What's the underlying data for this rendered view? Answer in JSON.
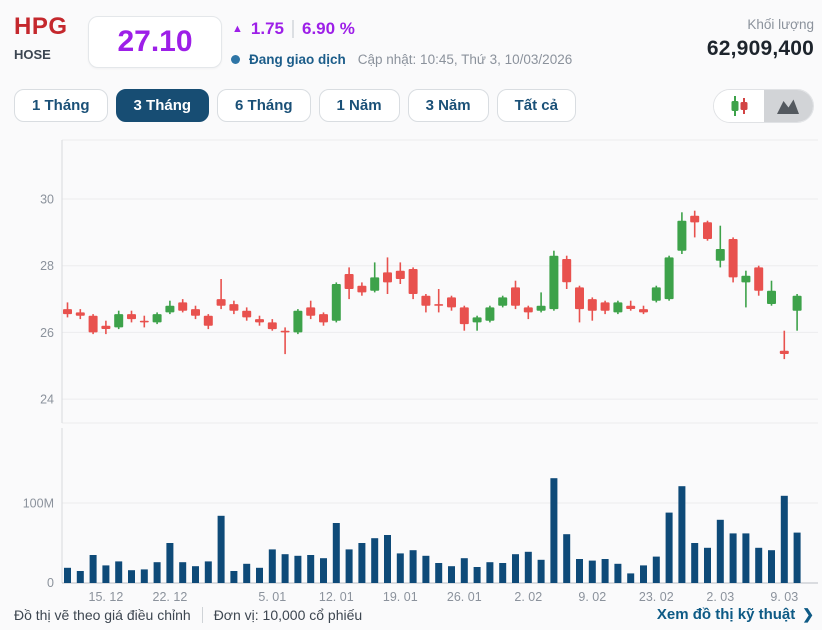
{
  "header": {
    "ticker": "HPG",
    "exchange": "HOSE",
    "price": "27.10",
    "change_arrow": "▲",
    "change_value": "1.75",
    "change_percent": "6.90 %",
    "status_label": "Đang giao dịch",
    "updated_label": "Cập nhật: 10:45, Thứ 3, 10/03/2026",
    "volume_label": "Khối lượng",
    "volume_value": "62,909,400"
  },
  "toolbar": {
    "tabs": [
      "1 Tháng",
      "3 Tháng",
      "6 Tháng",
      "1 Năm",
      "3 Năm",
      "Tất cả"
    ],
    "active_tab": "3 Tháng",
    "view_toggle": {
      "candlestick_selected": true,
      "options": [
        "candlestick",
        "area"
      ]
    }
  },
  "colors": {
    "ceiling_purple": "#9d1fe8",
    "ticker_red": "#c4282d",
    "navy": "#174d73",
    "status_blue": "#1c5d8a",
    "link_blue": "#0e5a85"
  },
  "chart_data": {
    "type": "candlestick+volume",
    "title": "HPG 3-month price chart",
    "price_axis_ticks": [
      30,
      28,
      26,
      24
    ],
    "price_range_shown": [
      24,
      30
    ],
    "volume_axis_ticks": [
      "100M",
      "0"
    ],
    "grid": true,
    "up_color": "#3da24a",
    "down_color": "#e8514e",
    "volume_color": "#0e4a78",
    "x_ticks": [
      {
        "index": 3,
        "label": "15. 12"
      },
      {
        "index": 8,
        "label": "22. 12"
      },
      {
        "index": 16,
        "label": "5. 01"
      },
      {
        "index": 21,
        "label": "12. 01"
      },
      {
        "index": 26,
        "label": "19. 01"
      },
      {
        "index": 31,
        "label": "26. 01"
      },
      {
        "index": 36,
        "label": "2. 02"
      },
      {
        "index": 41,
        "label": "9. 02"
      },
      {
        "index": 46,
        "label": "23. 02"
      },
      {
        "index": 51,
        "label": "2. 03"
      },
      {
        "index": 56,
        "label": "9. 03"
      }
    ],
    "candles_ohlc": [
      [
        26.7,
        26.9,
        26.45,
        26.55
      ],
      [
        26.6,
        26.7,
        26.4,
        26.5
      ],
      [
        26.5,
        26.55,
        25.95,
        26.0
      ],
      [
        26.2,
        26.35,
        25.95,
        26.1
      ],
      [
        26.15,
        26.65,
        26.1,
        26.55
      ],
      [
        26.55,
        26.65,
        26.3,
        26.4
      ],
      [
        26.35,
        26.5,
        26.15,
        26.3
      ],
      [
        26.3,
        26.6,
        26.25,
        26.55
      ],
      [
        26.6,
        26.95,
        26.55,
        26.8
      ],
      [
        26.9,
        27.0,
        26.6,
        26.65
      ],
      [
        26.7,
        26.8,
        26.4,
        26.5
      ],
      [
        26.5,
        26.55,
        26.1,
        26.2
      ],
      [
        27.0,
        27.6,
        26.7,
        26.8
      ],
      [
        26.85,
        26.95,
        26.55,
        26.65
      ],
      [
        26.65,
        26.75,
        26.35,
        26.45
      ],
      [
        26.4,
        26.5,
        26.2,
        26.3
      ],
      [
        26.3,
        26.4,
        26.05,
        26.1
      ],
      [
        26.05,
        26.15,
        25.35,
        26.0
      ],
      [
        26.0,
        26.7,
        25.95,
        26.65
      ],
      [
        26.75,
        26.95,
        26.4,
        26.5
      ],
      [
        26.55,
        26.6,
        26.2,
        26.3
      ],
      [
        26.35,
        27.5,
        26.3,
        27.45
      ],
      [
        27.75,
        27.95,
        27.0,
        27.3
      ],
      [
        27.4,
        27.5,
        27.1,
        27.2
      ],
      [
        27.25,
        28.1,
        27.2,
        27.65
      ],
      [
        27.8,
        28.25,
        27.15,
        27.5
      ],
      [
        27.85,
        28.1,
        27.45,
        27.6
      ],
      [
        27.9,
        27.95,
        27.0,
        27.15
      ],
      [
        27.1,
        27.15,
        26.6,
        26.8
      ],
      [
        26.85,
        27.3,
        26.6,
        26.8
      ],
      [
        27.05,
        27.1,
        26.65,
        26.75
      ],
      [
        26.75,
        26.8,
        26.05,
        26.25
      ],
      [
        26.3,
        26.5,
        26.05,
        26.45
      ],
      [
        26.35,
        26.8,
        26.3,
        26.75
      ],
      [
        26.8,
        27.1,
        26.75,
        27.05
      ],
      [
        27.35,
        27.55,
        26.7,
        26.8
      ],
      [
        26.75,
        26.8,
        26.4,
        26.6
      ],
      [
        26.65,
        27.2,
        26.6,
        26.8
      ],
      [
        26.7,
        28.45,
        26.65,
        28.3
      ],
      [
        28.2,
        28.3,
        27.3,
        27.5
      ],
      [
        27.35,
        27.4,
        26.3,
        26.7
      ],
      [
        27.0,
        27.05,
        26.35,
        26.65
      ],
      [
        26.9,
        26.95,
        26.55,
        26.65
      ],
      [
        26.6,
        26.95,
        26.55,
        26.9
      ],
      [
        26.8,
        26.95,
        26.65,
        26.7
      ],
      [
        26.7,
        26.8,
        26.55,
        26.6
      ],
      [
        26.95,
        27.4,
        26.9,
        27.35
      ],
      [
        27.0,
        28.3,
        26.95,
        28.25
      ],
      [
        28.45,
        29.6,
        28.35,
        29.35
      ],
      [
        29.5,
        29.65,
        28.85,
        29.3
      ],
      [
        29.3,
        29.35,
        28.75,
        28.8
      ],
      [
        28.15,
        29.2,
        27.95,
        28.5
      ],
      [
        28.8,
        28.85,
        27.5,
        27.65
      ],
      [
        27.5,
        27.85,
        26.75,
        27.7
      ],
      [
        27.95,
        28.0,
        27.1,
        27.25
      ],
      [
        26.85,
        27.55,
        26.8,
        27.25
      ],
      [
        25.45,
        26.05,
        25.2,
        25.35
      ],
      [
        26.65,
        27.15,
        26.05,
        27.1
      ]
    ],
    "volumes_millions": [
      19,
      15,
      35,
      22,
      27,
      16,
      17,
      26,
      50,
      26,
      21,
      27,
      84,
      15,
      24,
      19,
      42,
      36,
      34,
      35,
      31,
      75,
      42,
      50,
      56,
      60,
      37,
      41,
      34,
      25,
      21,
      31,
      20,
      26,
      25,
      36,
      39,
      29,
      131,
      61,
      30,
      28,
      30,
      24,
      12,
      22,
      33,
      88,
      121,
      50,
      44,
      79,
      62,
      62,
      44,
      41,
      109,
      63
    ]
  },
  "footer": {
    "note_adjusted": "Đồ thị vẽ theo giá điều chỉnh",
    "note_unit": "Đơn vị: 10,000 cổ phiếu",
    "link_label": "Xem đồ thị kỹ thuật",
    "link_arrow": "❯"
  }
}
